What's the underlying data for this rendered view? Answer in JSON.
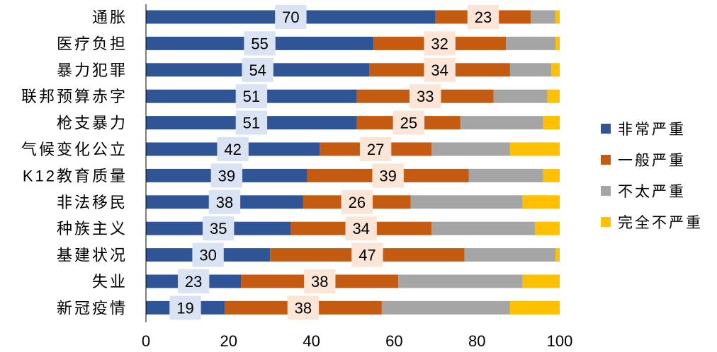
{
  "chart_data": {
    "type": "bar",
    "orientation": "horizontal",
    "stacked": true,
    "categories": [
      "通胀",
      "医疗负担",
      "暴力犯罪",
      "联邦预算赤字",
      "枪支暴力",
      "气候变化公立",
      "K12教育质量",
      "非法移民",
      "种族主义",
      "基建状况",
      "失业",
      "新冠疫情"
    ],
    "series": [
      {
        "name": "非常严重",
        "color": "#2F5597",
        "values": [
          70,
          55,
          54,
          51,
          51,
          42,
          39,
          38,
          35,
          30,
          23,
          19
        ]
      },
      {
        "name": "一般严重",
        "color": "#C55A11",
        "values": [
          23,
          32,
          34,
          33,
          25,
          27,
          39,
          26,
          34,
          47,
          38,
          38
        ]
      },
      {
        "name": "不太严重",
        "color": "#A5A5A5",
        "values": [
          6,
          12,
          10,
          13,
          20,
          19,
          18,
          27,
          25,
          22,
          30,
          31
        ]
      },
      {
        "name": "完全不严重",
        "color": "#FFC000",
        "values": [
          1,
          1,
          2,
          3,
          4,
          12,
          4,
          9,
          6,
          1,
          9,
          12
        ]
      }
    ],
    "labeled_series": [
      0,
      1
    ],
    "label_bg_colors": [
      "#DAE3F3",
      "#FBE5D6"
    ],
    "xlim": [
      0,
      100
    ],
    "xticks": [
      0,
      20,
      40,
      60,
      80,
      100
    ],
    "title": "",
    "xlabel": "",
    "ylabel": "",
    "grid": false,
    "legend_position": "right"
  }
}
